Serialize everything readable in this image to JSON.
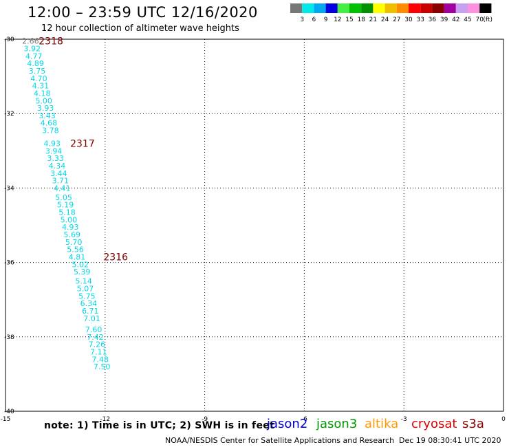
{
  "header": {
    "title": "12:00 – 23:59 UTC 12/16/2020",
    "subtitle": "12 hour collection of altimeter wave heights"
  },
  "colorbar": {
    "unit": "(ft)",
    "bins": [
      {
        "label": "3",
        "color": "#777777"
      },
      {
        "label": "6",
        "color": "#00e8e8"
      },
      {
        "label": "9",
        "color": "#00a8f0"
      },
      {
        "label": "12",
        "color": "#0000e0"
      },
      {
        "label": "15",
        "color": "#44ee44"
      },
      {
        "label": "18",
        "color": "#00c000"
      },
      {
        "label": "21",
        "color": "#009000"
      },
      {
        "label": "24",
        "color": "#ffff00"
      },
      {
        "label": "27",
        "color": "#f0c000"
      },
      {
        "label": "30",
        "color": "#ff8c00"
      },
      {
        "label": "33",
        "color": "#ff0000"
      },
      {
        "label": "36",
        "color": "#c80000"
      },
      {
        "label": "39",
        "color": "#880000"
      },
      {
        "label": "42",
        "color": "#a000a0"
      },
      {
        "label": "45",
        "color": "#c8a0f0"
      },
      {
        "label": "70",
        "color": "#ff90e0"
      },
      {
        "label": "",
        "color": "#000000"
      }
    ]
  },
  "footer": {
    "note": "note: 1) Time is in UTC; 2) SWH is in feet",
    "satellites": [
      {
        "name": "jason2",
        "color": "#0000cc"
      },
      {
        "name": "jason3",
        "color": "#009900"
      },
      {
        "name": "altika",
        "color": "#ff9900"
      },
      {
        "name": "cryosat",
        "color": "#dd0000"
      },
      {
        "name": "s3a",
        "color": "#880000"
      }
    ],
    "credit": "NOAA/NESDIS Center for Satellite Applications and Research",
    "timestamp": "Dec 19 08:30:41 UTC 2020"
  },
  "chart_data": {
    "type": "scatter",
    "title": "12:00 – 23:59 UTC 12/16/2020",
    "subtitle": "12 hour collection of altimeter wave heights",
    "xlabel": "",
    "ylabel": "",
    "xlim": [
      -15,
      0
    ],
    "ylim": [
      -40,
      -30
    ],
    "x_ticks": [
      -15,
      -12,
      -9,
      -6,
      -3,
      0
    ],
    "y_ticks": [
      -30,
      -32,
      -34,
      -36,
      -38,
      -40
    ],
    "grid": true,
    "point_color": "#00d8e8",
    "label_color": "#800000",
    "points": [
      {
        "x": -14.5,
        "y": -30.05,
        "value": "2.66",
        "color": "#777777"
      },
      {
        "x": -14.45,
        "y": -30.25,
        "value": "3.92"
      },
      {
        "x": -14.4,
        "y": -30.45,
        "value": "4.77"
      },
      {
        "x": -14.35,
        "y": -30.65,
        "value": "4.89"
      },
      {
        "x": -14.3,
        "y": -30.85,
        "value": "3.75"
      },
      {
        "x": -14.25,
        "y": -31.05,
        "value": "4.70"
      },
      {
        "x": -14.2,
        "y": -31.25,
        "value": "4.31"
      },
      {
        "x": -14.15,
        "y": -31.45,
        "value": "4.18"
      },
      {
        "x": -14.1,
        "y": -31.65,
        "value": "5.00"
      },
      {
        "x": -14.05,
        "y": -31.85,
        "value": "3.93"
      },
      {
        "x": -14.0,
        "y": -32.05,
        "value": "3.43"
      },
      {
        "x": -13.95,
        "y": -32.25,
        "value": "4.68"
      },
      {
        "x": -13.9,
        "y": -32.45,
        "value": "3.78"
      },
      {
        "x": -13.85,
        "y": -32.8,
        "value": "4.93"
      },
      {
        "x": -13.8,
        "y": -33.0,
        "value": "3.94"
      },
      {
        "x": -13.75,
        "y": -33.2,
        "value": "3.33"
      },
      {
        "x": -13.7,
        "y": -33.4,
        "value": "4.34"
      },
      {
        "x": -13.65,
        "y": -33.6,
        "value": "3.44"
      },
      {
        "x": -13.6,
        "y": -33.8,
        "value": "3.71"
      },
      {
        "x": -13.55,
        "y": -34.0,
        "value": "4.41"
      },
      {
        "x": -13.5,
        "y": -34.25,
        "value": "5.05"
      },
      {
        "x": -13.45,
        "y": -34.45,
        "value": "5.19"
      },
      {
        "x": -13.4,
        "y": -34.65,
        "value": "5.18"
      },
      {
        "x": -13.35,
        "y": -34.85,
        "value": "5.00"
      },
      {
        "x": -13.3,
        "y": -35.05,
        "value": "4.93"
      },
      {
        "x": -13.25,
        "y": -35.25,
        "value": "5.69"
      },
      {
        "x": -13.2,
        "y": -35.45,
        "value": "5.70"
      },
      {
        "x": -13.15,
        "y": -35.65,
        "value": "5.56"
      },
      {
        "x": -13.1,
        "y": -35.85,
        "value": "4.81"
      },
      {
        "x": -13.0,
        "y": -36.05,
        "value": "5.02"
      },
      {
        "x": -12.95,
        "y": -36.25,
        "value": "5.39"
      },
      {
        "x": -12.9,
        "y": -36.5,
        "value": "5.14"
      },
      {
        "x": -12.85,
        "y": -36.7,
        "value": "5.07"
      },
      {
        "x": -12.8,
        "y": -36.9,
        "value": "5.75"
      },
      {
        "x": -12.75,
        "y": -37.1,
        "value": "6.34"
      },
      {
        "x": -12.7,
        "y": -37.3,
        "value": "6.71"
      },
      {
        "x": -12.65,
        "y": -37.5,
        "value": "7.01"
      },
      {
        "x": -12.6,
        "y": -37.8,
        "value": "7.60"
      },
      {
        "x": -12.55,
        "y": -38.0,
        "value": "7.42"
      },
      {
        "x": -12.5,
        "y": -38.2,
        "value": "7.26"
      },
      {
        "x": -12.45,
        "y": -38.4,
        "value": "7.11"
      },
      {
        "x": -12.4,
        "y": -38.6,
        "value": "7.48"
      },
      {
        "x": -12.35,
        "y": -38.8,
        "value": "7.50"
      }
    ],
    "time_labels": [
      {
        "x": -14.0,
        "y": -30.05,
        "label": "2318"
      },
      {
        "x": -13.05,
        "y": -32.8,
        "label": "2317"
      },
      {
        "x": -12.05,
        "y": -35.85,
        "label": "2316"
      }
    ]
  }
}
